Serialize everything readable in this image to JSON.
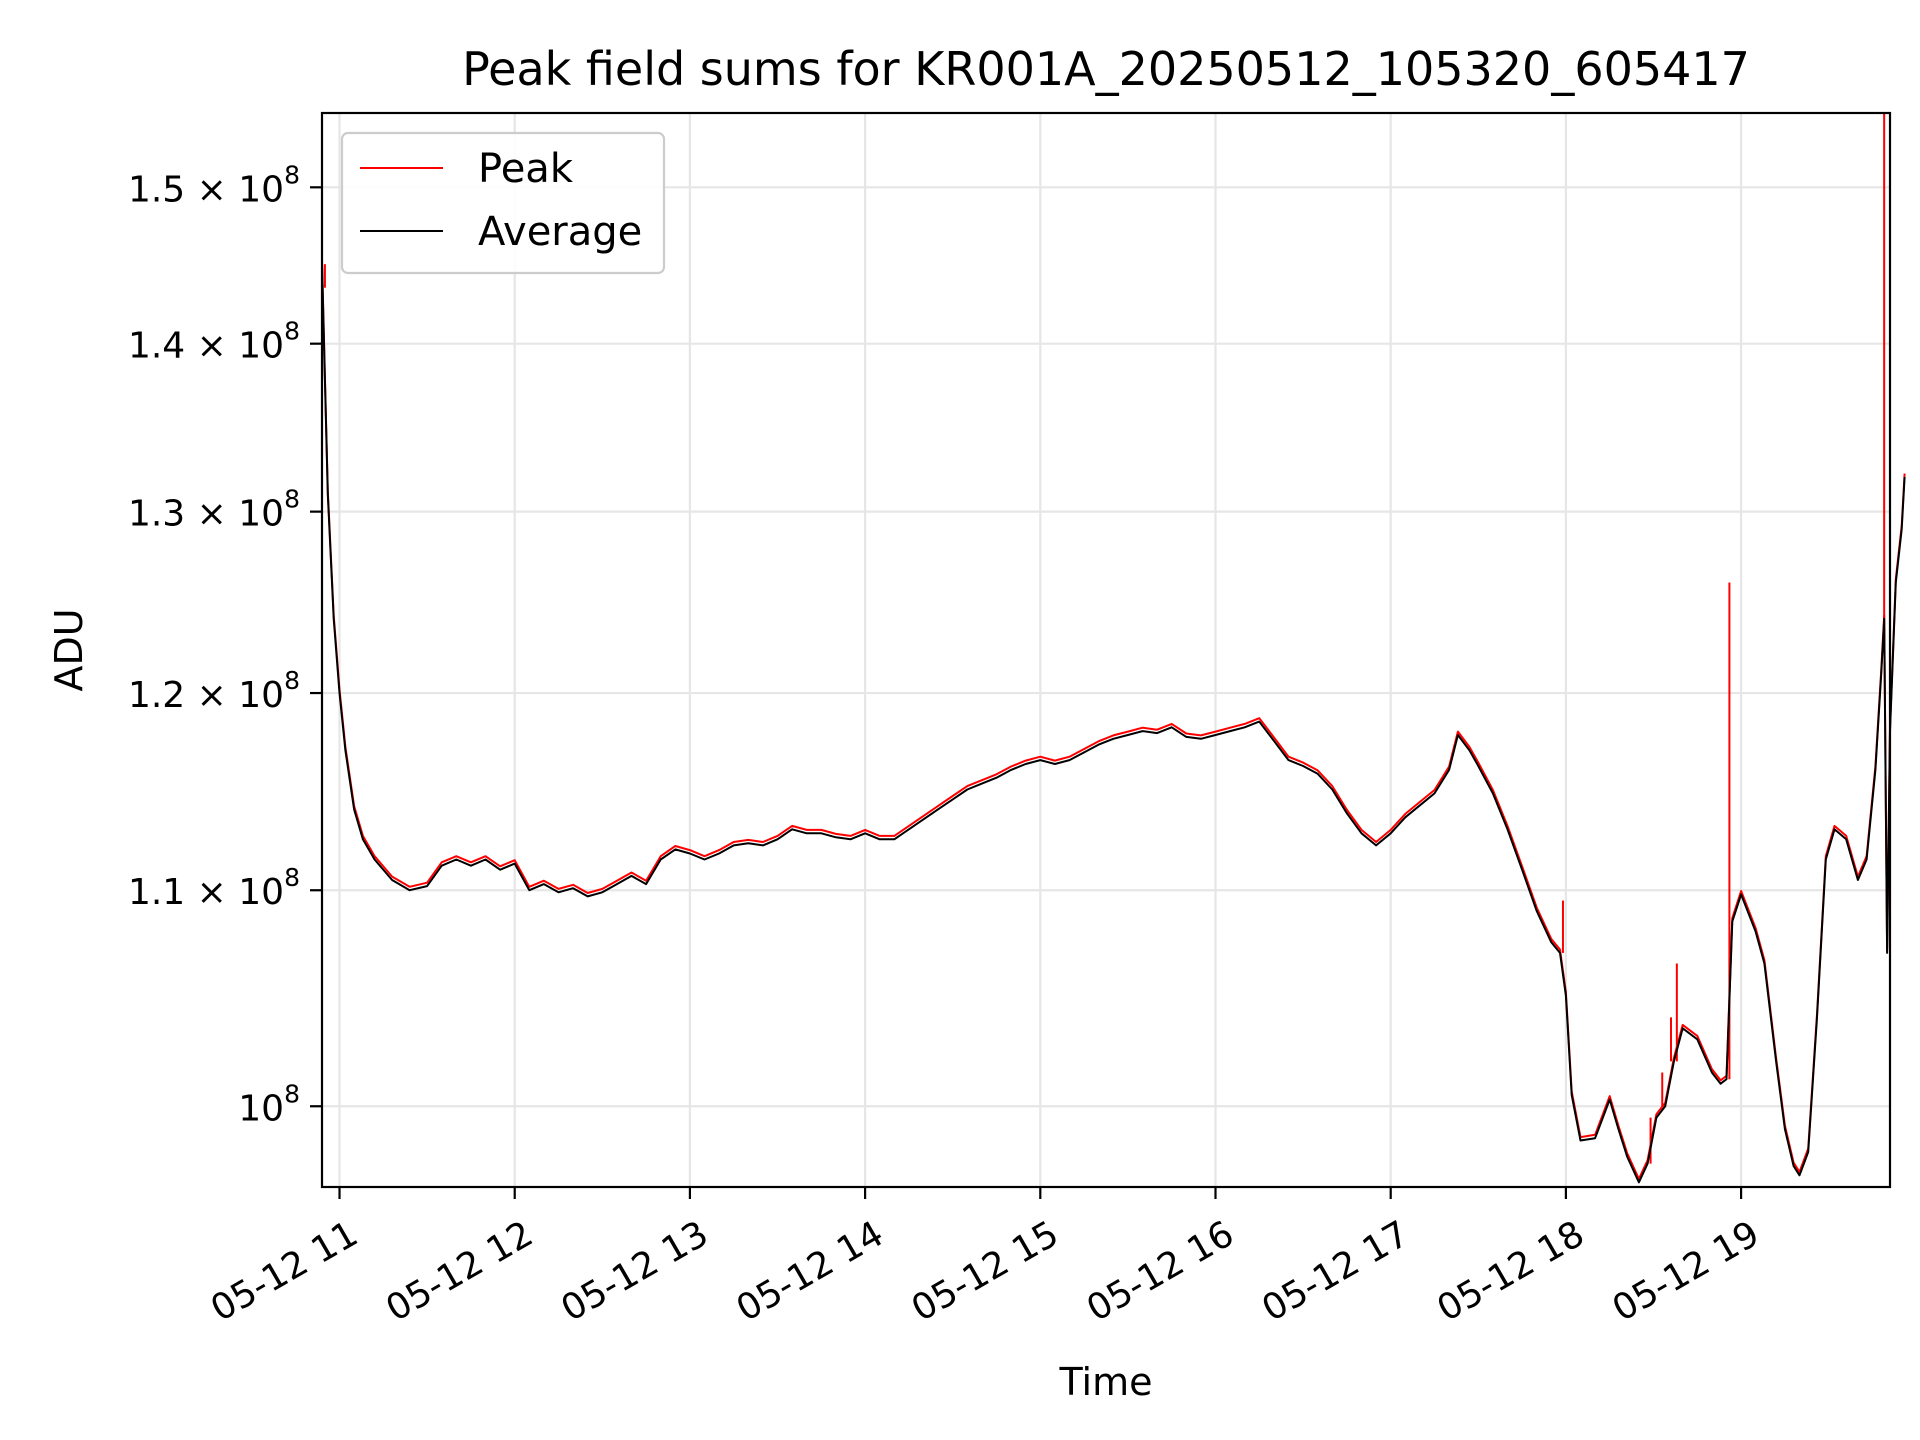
{
  "chart_data": {
    "type": "line",
    "title": "Peak field sums for KR001A_20250512_105320_605417",
    "xlabel": "Time",
    "ylabel": "ADU",
    "x_format": "MM-DD HH (date axis, 2025-05-12)",
    "xlim": [
      "05-12 10:54",
      "05-12 19:51"
    ],
    "ylim": [
      96500000,
      155000000
    ],
    "yscale": "log",
    "grid": true,
    "legend_position": "top-left",
    "x_ticks": [
      "05-12 11",
      "05-12 12",
      "05-12 13",
      "05-12 14",
      "05-12 15",
      "05-12 16",
      "05-12 17",
      "05-12 18",
      "05-12 19"
    ],
    "y_ticks": [
      {
        "value": 100000000,
        "mantissa": "",
        "base": "10",
        "exp": "8"
      },
      {
        "value": 110000000,
        "mantissa": "1.1",
        "base": "10",
        "exp": "8"
      },
      {
        "value": 120000000,
        "mantissa": "1.2",
        "base": "10",
        "exp": "8"
      },
      {
        "value": 130000000,
        "mantissa": "1.3",
        "base": "10",
        "exp": "8"
      },
      {
        "value": 140000000,
        "mantissa": "1.4",
        "base": "10",
        "exp": "8"
      },
      {
        "value": 150000000,
        "mantissa": "1.5",
        "base": "10",
        "exp": "8"
      }
    ],
    "series": [
      {
        "name": "Peak",
        "color": "#ff0000"
      },
      {
        "name": "Average",
        "color": "#000000"
      }
    ],
    "average_points": [
      [
        "10:54",
        145000000
      ],
      [
        "10:56",
        131000000
      ],
      [
        "10:58",
        124000000
      ],
      [
        "11:00",
        120000000
      ],
      [
        "11:02",
        117000000
      ],
      [
        "11:05",
        114000000
      ],
      [
        "11:08",
        112500000
      ],
      [
        "11:12",
        111500000
      ],
      [
        "11:18",
        110500000
      ],
      [
        "11:24",
        110000000
      ],
      [
        "11:30",
        110200000
      ],
      [
        "11:35",
        111200000
      ],
      [
        "11:40",
        111500000
      ],
      [
        "11:45",
        111200000
      ],
      [
        "11:50",
        111500000
      ],
      [
        "11:55",
        111000000
      ],
      [
        "12:00",
        111300000
      ],
      [
        "12:05",
        110000000
      ],
      [
        "12:10",
        110300000
      ],
      [
        "12:15",
        109900000
      ],
      [
        "12:20",
        110100000
      ],
      [
        "12:25",
        109700000
      ],
      [
        "12:30",
        109900000
      ],
      [
        "12:35",
        110300000
      ],
      [
        "12:40",
        110700000
      ],
      [
        "12:45",
        110300000
      ],
      [
        "12:50",
        111500000
      ],
      [
        "12:55",
        112000000
      ],
      [
        "13:00",
        111800000
      ],
      [
        "13:05",
        111500000
      ],
      [
        "13:10",
        111800000
      ],
      [
        "13:15",
        112200000
      ],
      [
        "13:20",
        112300000
      ],
      [
        "13:25",
        112200000
      ],
      [
        "13:30",
        112500000
      ],
      [
        "13:35",
        113000000
      ],
      [
        "13:40",
        112800000
      ],
      [
        "13:45",
        112800000
      ],
      [
        "13:50",
        112600000
      ],
      [
        "13:55",
        112500000
      ],
      [
        "14:00",
        112800000
      ],
      [
        "14:05",
        112500000
      ],
      [
        "14:10",
        112500000
      ],
      [
        "14:15",
        113000000
      ],
      [
        "14:20",
        113500000
      ],
      [
        "14:25",
        114000000
      ],
      [
        "14:30",
        114500000
      ],
      [
        "14:35",
        115000000
      ],
      [
        "14:40",
        115300000
      ],
      [
        "14:45",
        115600000
      ],
      [
        "14:50",
        116000000
      ],
      [
        "14:55",
        116300000
      ],
      [
        "15:00",
        116500000
      ],
      [
        "15:05",
        116300000
      ],
      [
        "15:10",
        116500000
      ],
      [
        "15:15",
        116900000
      ],
      [
        "15:20",
        117300000
      ],
      [
        "15:25",
        117600000
      ],
      [
        "15:30",
        117800000
      ],
      [
        "15:35",
        118000000
      ],
      [
        "15:40",
        117900000
      ],
      [
        "15:45",
        118200000
      ],
      [
        "15:50",
        117700000
      ],
      [
        "15:55",
        117600000
      ],
      [
        "16:00",
        117800000
      ],
      [
        "16:05",
        118000000
      ],
      [
        "16:10",
        118200000
      ],
      [
        "16:15",
        118500000
      ],
      [
        "16:20",
        117500000
      ],
      [
        "16:25",
        116500000
      ],
      [
        "16:30",
        116200000
      ],
      [
        "16:35",
        115800000
      ],
      [
        "16:40",
        115000000
      ],
      [
        "16:45",
        113800000
      ],
      [
        "16:50",
        112800000
      ],
      [
        "16:55",
        112200000
      ],
      [
        "17:00",
        112800000
      ],
      [
        "17:05",
        113600000
      ],
      [
        "17:10",
        114200000
      ],
      [
        "17:15",
        114800000
      ],
      [
        "17:20",
        116000000
      ],
      [
        "17:23",
        117800000
      ],
      [
        "17:27",
        117000000
      ],
      [
        "17:30",
        116200000
      ],
      [
        "17:35",
        114800000
      ],
      [
        "17:40",
        113000000
      ],
      [
        "17:45",
        111000000
      ],
      [
        "17:50",
        109000000
      ],
      [
        "17:55",
        107500000
      ],
      [
        "17:58",
        107000000
      ],
      [
        "18:00",
        105000000
      ],
      [
        "18:02",
        100500000
      ],
      [
        "18:05",
        98500000
      ],
      [
        "18:10",
        98600000
      ],
      [
        "18:15",
        100300000
      ],
      [
        "18:18",
        99000000
      ],
      [
        "18:21",
        97800000
      ],
      [
        "18:25",
        96700000
      ],
      [
        "18:28",
        97500000
      ],
      [
        "18:31",
        99500000
      ],
      [
        "18:34",
        100000000
      ],
      [
        "18:37",
        102000000
      ],
      [
        "18:40",
        103500000
      ],
      [
        "18:45",
        103000000
      ],
      [
        "18:50",
        101500000
      ],
      [
        "18:53",
        101000000
      ],
      [
        "18:55",
        101200000
      ],
      [
        "18:57",
        108500000
      ],
      [
        "19:00",
        109800000
      ],
      [
        "19:05",
        108000000
      ],
      [
        "19:08",
        106500000
      ],
      [
        "19:12",
        102000000
      ],
      [
        "19:15",
        99000000
      ],
      [
        "19:18",
        97400000
      ],
      [
        "19:20",
        97000000
      ],
      [
        "19:23",
        98000000
      ],
      [
        "19:26",
        104000000
      ],
      [
        "19:29",
        111500000
      ],
      [
        "19:32",
        113000000
      ],
      [
        "19:36",
        112500000
      ],
      [
        "19:40",
        110500000
      ],
      [
        "19:43",
        111500000
      ],
      [
        "19:46",
        116000000
      ],
      [
        "19:48",
        121000000
      ],
      [
        "19:49",
        124000000
      ],
      [
        "19:50",
        107000000
      ],
      [
        "19:51",
        118000000
      ],
      [
        "19:53",
        126000000
      ],
      [
        "19:55",
        129000000
      ],
      [
        "19:56",
        132000000
      ]
    ],
    "peak_spikes": [
      [
        "10:55",
        143500000
      ],
      [
        "17:59",
        109500000
      ],
      [
        "18:29",
        99500000
      ],
      [
        "18:33",
        101500000
      ],
      [
        "18:36",
        104000000
      ],
      [
        "18:38",
        106500000
      ],
      [
        "18:56",
        126000000
      ],
      [
        "19:49",
        155000000
      ]
    ]
  }
}
